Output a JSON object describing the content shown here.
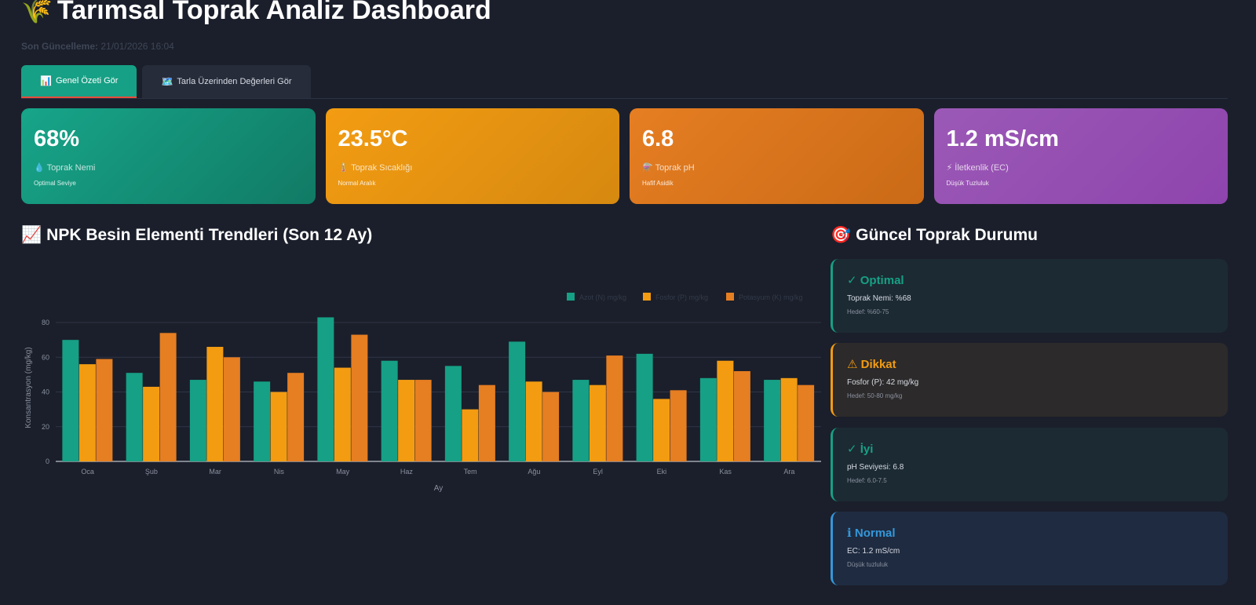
{
  "header": {
    "icon": "rice-plant-icon",
    "title": "Tarımsal Toprak Analiz Dashboard",
    "last_update_label": "Son Güncelleme:",
    "last_update_value": "21/01/2026 16:04"
  },
  "tabs": [
    {
      "icon": "📊",
      "label": "Genel Özeti Gör",
      "active": true
    },
    {
      "icon": "🗺️",
      "label": "Tarla Üzerinden Değerleri Gör",
      "active": false
    }
  ],
  "metrics": [
    {
      "value": "68%",
      "icon": "💧",
      "label": "Toprak Nemi",
      "note": "Optimal Seviye"
    },
    {
      "value": "23.5°C",
      "icon": "🌡️",
      "label": "Toprak Sıcaklığı",
      "note": "Normal Aralık"
    },
    {
      "value": "6.8",
      "icon": "⚗️",
      "label": "Toprak pH",
      "note": "Hafif Asidik"
    },
    {
      "value": "1.2 mS/cm",
      "icon": "⚡",
      "label": "İletkenlik (EC)",
      "note": "Düşük Tuzluluk"
    }
  ],
  "trend_section": {
    "icon": "📈",
    "title": "NPK Besin Elementi Trendleri (Son 12 Ay)"
  },
  "status_section": {
    "icon": "🎯",
    "title": "Güncel Toprak Durumu",
    "items": [
      {
        "title": "✓ Optimal",
        "desc": "Toprak Nemi: %68",
        "hint": "Hedef: %60-75",
        "tone": "green"
      },
      {
        "title": "⚠ Dikkat",
        "desc": "Fosfor (P): 42 mg/kg",
        "hint": "Hedef: 50-80 mg/kg",
        "tone": "orange"
      },
      {
        "title": "✓ İyi",
        "desc": "pH Seviyesi: 6.8",
        "hint": "Hedef: 6.0-7.5",
        "tone": "green"
      },
      {
        "title": "ℹ Normal",
        "desc": "EC: 1.2 mS/cm",
        "hint": "Düşük tuzluluk",
        "tone": "blue"
      }
    ]
  },
  "colors": {
    "green": "#16a085",
    "yellow": "#f39c12",
    "orange": "#e67e22",
    "purple": "#9b59b6"
  },
  "chart_data": {
    "type": "bar",
    "categories": [
      "Oca",
      "Şub",
      "Mar",
      "Nis",
      "May",
      "Haz",
      "Tem",
      "Ağu",
      "Eyl",
      "Eki",
      "Kas",
      "Ara"
    ],
    "series": [
      {
        "name": "Azot (N) mg/kg",
        "color": "#16a085",
        "values": [
          70,
          51,
          47,
          46,
          83,
          58,
          55,
          69,
          47,
          62,
          48,
          47
        ]
      },
      {
        "name": "Fosfor (P) mg/kg",
        "color": "#f39c12",
        "values": [
          56,
          43,
          66,
          40,
          54,
          47,
          30,
          46,
          44,
          36,
          58,
          48
        ]
      },
      {
        "name": "Potasyum (K) mg/kg",
        "color": "#e67e22",
        "values": [
          59,
          74,
          60,
          51,
          73,
          47,
          44,
          40,
          61,
          41,
          52,
          44
        ]
      }
    ],
    "xlabel": "Ay",
    "ylabel": "Konsantrasyon (mg/kg)",
    "yticks": [
      0,
      20,
      40,
      60,
      80
    ],
    "ylim": [
      0,
      85
    ],
    "grid": true,
    "legend_position": "top-right"
  }
}
